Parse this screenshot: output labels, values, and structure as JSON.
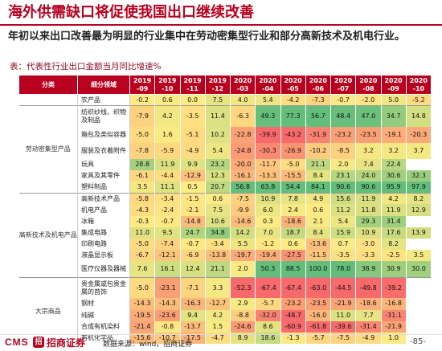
{
  "title": "海外供需缺口将促使我国出口继续改善",
  "subtitle": "年初以来出口改善最为明显的行业集中在劳动密集型行业和部分高新技术及机电行业。",
  "caption": "表：代表性行业出口金额当月同比增速%",
  "header": {
    "category": "分类",
    "subcategory": "细分领域",
    "months": [
      "2019\n-09",
      "2019\n-10",
      "2019\n-11",
      "2019\n-12",
      "2020\n-03",
      "2020\n-04",
      "2020\n-05",
      "2020\n-06",
      "2020\n-07",
      "2020\n-08",
      "2020\n-09",
      "2020\n-10"
    ]
  },
  "groups": [
    {
      "name": "",
      "rows": [
        {
          "name": "农产品",
          "values": [
            "-0.2",
            "0.6",
            "0.0",
            "7.5",
            "4.0",
            "5.4",
            "-4.2",
            "-7.3",
            "-0.7",
            "-2.0",
            "5.0",
            "-5.2"
          ]
        }
      ]
    },
    {
      "name": "劳动密集型产品",
      "rows": [
        {
          "name": "纺织纱线、织物及制品",
          "values": [
            "-7.9",
            "4.2",
            "-3.5",
            "11.4",
            "-6.3",
            "49.3",
            "77.3",
            "56.7",
            "48.4",
            "47.0",
            "34.7",
            "14.8"
          ]
        },
        {
          "name": "箱包及类似容器",
          "values": [
            "-5.0",
            "1.6",
            "-5.1",
            "10.2",
            "-22.8",
            "-39.9",
            "-43.2",
            "-31.9",
            "-23.2",
            "-23.5",
            "-19.1",
            "-20.3"
          ]
        },
        {
          "name": "服装及衣着附件",
          "values": [
            "-7.8",
            "-5.9",
            "-4.9",
            "5.4",
            "-24.8",
            "-30.3",
            "-26.9",
            "-10.2",
            "-8.5",
            "3.2",
            "3.2",
            "3.7"
          ]
        },
        {
          "name": "玩具",
          "values": [
            "28.8",
            "11.9",
            "9.9",
            "23.2",
            "-20.0",
            "-11.7",
            "-5.0",
            "21.1",
            "2.0",
            "7.4",
            "22.4",
            ""
          ]
        },
        {
          "name": "家具及其零件",
          "values": [
            "-6.1",
            "-4.4",
            "-12.9",
            "12.3",
            "-16.1",
            "-13.3",
            "-15.5",
            "8.4",
            "23.1",
            "24.0",
            "30.6",
            "32.3"
          ]
        },
        {
          "name": "塑料制品",
          "values": [
            "3.5",
            "11.1",
            "0.5",
            "20.7",
            "56.8",
            "63.8",
            "54.4",
            "84.1",
            "90.6",
            "90.6",
            "95.9",
            "97.9"
          ]
        }
      ]
    },
    {
      "name": "高新技术及机电产品",
      "rows": [
        {
          "name": "高新技术产品",
          "values": [
            "-5.8",
            "-3.4",
            "-1.5",
            "0.6",
            "-7.5",
            "10.9",
            "7.8",
            "4.9",
            "15.6",
            "11.9",
            "4.2",
            "8.2"
          ]
        },
        {
          "name": "机电产品",
          "values": [
            "-4.3",
            "-2.4",
            "-2.1",
            "7.5",
            "-9.9",
            "6.0",
            "2.4",
            "0.6",
            "11.2",
            "11.8",
            "11.9",
            "12.9"
          ]
        },
        {
          "name": "冰箱",
          "values": [
            "-0.3",
            "-0.7",
            "-14.8",
            "10.6",
            "-14.6",
            "0.3",
            "-18.6",
            "2.1",
            "5.4",
            "29.3",
            "31.4",
            ""
          ]
        },
        {
          "name": "集成电路",
          "values": [
            "11.0",
            "9.5",
            "24.7",
            "34.8",
            "14.2",
            "7.0",
            "18.7",
            "8.4",
            "15.9",
            "10.9",
            "17.6",
            "13.9"
          ]
        },
        {
          "name": "印刷电路",
          "values": [
            "-5.0",
            "-7.4",
            "-0.7",
            "-3.4",
            "5.5",
            "-1.2",
            "0.6",
            "-13.6",
            "0.7",
            "-3.0",
            "8.2",
            ""
          ]
        },
        {
          "name": "液晶显示板",
          "values": [
            "-6.7",
            "-12.1",
            "-6.9",
            "-13.8",
            "-19.7",
            "-19.4",
            "-27.5",
            "-11.5",
            "-3.5",
            "-3.3",
            "-2.5",
            "3.5"
          ]
        },
        {
          "name": "医疗仪器及器械",
          "values": [
            "7.6",
            "16.1",
            "12.4",
            "21.1",
            "2.0",
            "50.3",
            "88.5",
            "100.0",
            "78.0",
            "38.9",
            "30.9",
            "30.0"
          ]
        }
      ]
    },
    {
      "name": "大宗商品",
      "rows": [
        {
          "name": "贵金属或包贵金属的首饰",
          "values": [
            "-5.0",
            "-23.1",
            "-7.1",
            "3.3",
            "-52.3",
            "-67.4",
            "-67.4",
            "-63.0",
            "-44.5",
            "-49.8",
            "-39.2",
            ""
          ]
        },
        {
          "name": "钢材",
          "values": [
            "-14.3",
            "-14.3",
            "-16.3",
            "-12.7",
            "2.9",
            "-5.7",
            "-23.2",
            "-23.5",
            "-21.9",
            "-18.6",
            "-16.8",
            ""
          ]
        },
        {
          "name": "纯碱",
          "values": [
            "-19.5",
            "-23.6",
            "9.4",
            "4.2",
            "-8.8",
            "-32.0",
            "-48.7",
            "-16.0",
            "11.0",
            "7.7",
            "-31.1",
            ""
          ]
        },
        {
          "name": "合成有机染料",
          "values": [
            "-21.4",
            "-0.8",
            "-13.7",
            "1.5",
            "-24.6",
            "8.6",
            "-60.9",
            "-61.8",
            "-39.6",
            "-31.4",
            "-21.9",
            ""
          ]
        },
        {
          "name": "有机化学品",
          "values": [
            "-15.6",
            "-10.7",
            "-17.5",
            "-4.7",
            "8.9",
            "18.6",
            "-1.3",
            "-5.7",
            "-7.5",
            "-4.9",
            "1.0",
            ""
          ]
        }
      ]
    }
  ],
  "colors": {
    "brand": "#b8001f",
    "scale_negative": "#f8696b",
    "scale_mid": "#ffeb84",
    "scale_positive": "#63be7b"
  },
  "footer": {
    "logo_latin": "CMS",
    "logo_mark": "招",
    "logo_name": "招商证券",
    "source": "数据来源：wind，招商证券",
    "page": "-85-"
  }
}
